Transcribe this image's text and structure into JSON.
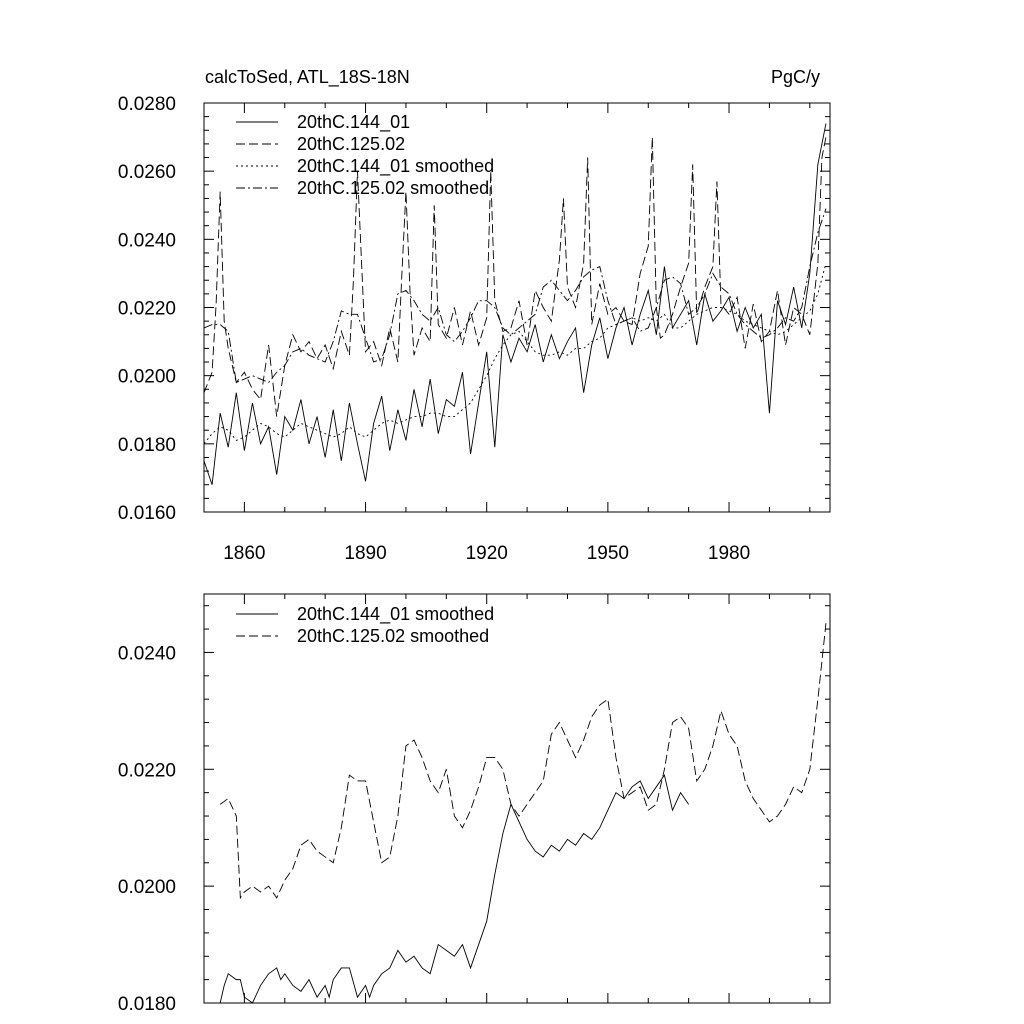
{
  "chart_data": [
    {
      "type": "line",
      "title": "calcToSed, ATL_18S-18N",
      "units_label": "PgC/y",
      "xlabel": "",
      "ylabel": "",
      "xlim": [
        1850,
        2005
      ],
      "ylim": [
        0.016,
        0.028
      ],
      "x_ticks": [
        1860,
        1890,
        1920,
        1950,
        1980
      ],
      "x_tick_labels": [
        "1860",
        "1890",
        "1920",
        "1950",
        "1980"
      ],
      "y_ticks": [
        0.016,
        0.018,
        0.02,
        0.022,
        0.024,
        0.026,
        0.028
      ],
      "y_tick_labels": [
        "0.0160",
        "0.0180",
        "0.0200",
        "0.0220",
        "0.0240",
        "0.0260",
        "0.0280"
      ],
      "legend_position": "top-left",
      "series": [
        {
          "name": "20thC.144_01",
          "style": "solid",
          "x": [
            1850,
            1852,
            1854,
            1856,
            1858,
            1860,
            1862,
            1864,
            1866,
            1868,
            1870,
            1872,
            1874,
            1876,
            1878,
            1880,
            1882,
            1884,
            1886,
            1888,
            1890,
            1892,
            1894,
            1896,
            1898,
            1900,
            1902,
            1904,
            1906,
            1908,
            1910,
            1912,
            1914,
            1916,
            1918,
            1920,
            1922,
            1924,
            1926,
            1928,
            1930,
            1932,
            1934,
            1936,
            1938,
            1940,
            1942,
            1944,
            1946,
            1948,
            1950,
            1952,
            1954,
            1956,
            1958,
            1960,
            1962,
            1964,
            1966,
            1968,
            1970,
            1972,
            1974,
            1976,
            1978,
            1980,
            1982,
            1984,
            1986,
            1988,
            1990,
            1992,
            1994,
            1996,
            1998,
            2000,
            2002,
            2004
          ],
          "y": [
            0.0175,
            0.0168,
            0.0189,
            0.0179,
            0.0195,
            0.0178,
            0.0192,
            0.018,
            0.0185,
            0.0171,
            0.0188,
            0.0184,
            0.0193,
            0.018,
            0.0188,
            0.0176,
            0.019,
            0.0175,
            0.0192,
            0.018,
            0.0169,
            0.0186,
            0.0194,
            0.0178,
            0.019,
            0.0181,
            0.0196,
            0.0185,
            0.0199,
            0.0183,
            0.0193,
            0.0191,
            0.0201,
            0.0177,
            0.0192,
            0.0207,
            0.0179,
            0.0212,
            0.0204,
            0.0211,
            0.0207,
            0.0215,
            0.0204,
            0.0212,
            0.0205,
            0.021,
            0.0214,
            0.0195,
            0.0209,
            0.0217,
            0.0205,
            0.0214,
            0.022,
            0.0209,
            0.0218,
            0.0225,
            0.0212,
            0.0232,
            0.0214,
            0.0218,
            0.0222,
            0.0209,
            0.0224,
            0.0216,
            0.0219,
            0.0223,
            0.0213,
            0.022,
            0.0214,
            0.0218,
            0.0189,
            0.0222,
            0.0215,
            0.0226,
            0.0214,
            0.023,
            0.0262,
            0.0274
          ]
        },
        {
          "name": "20thC.125.02",
          "style": "dash",
          "x": [
            1850,
            1852,
            1853,
            1854,
            1855,
            1856,
            1858,
            1860,
            1862,
            1864,
            1866,
            1868,
            1870,
            1872,
            1874,
            1876,
            1878,
            1880,
            1882,
            1884,
            1886,
            1887,
            1888,
            1890,
            1892,
            1894,
            1896,
            1898,
            1899,
            1900,
            1901,
            1902,
            1904,
            1906,
            1907,
            1908,
            1910,
            1912,
            1914,
            1916,
            1918,
            1920,
            1921,
            1922,
            1924,
            1926,
            1928,
            1930,
            1932,
            1934,
            1936,
            1938,
            1939,
            1940,
            1942,
            1944,
            1945,
            1946,
            1948,
            1950,
            1952,
            1954,
            1956,
            1958,
            1960,
            1961,
            1962,
            1963,
            1964,
            1966,
            1968,
            1970,
            1971,
            1972,
            1974,
            1976,
            1977,
            1978,
            1980,
            1982,
            1984,
            1986,
            1988,
            1990,
            1992,
            1994,
            1996,
            1998,
            2000,
            2002,
            2003,
            2004
          ],
          "y": [
            0.0195,
            0.0201,
            0.0221,
            0.0254,
            0.0216,
            0.0208,
            0.0198,
            0.0201,
            0.0196,
            0.0193,
            0.0209,
            0.0188,
            0.0203,
            0.0212,
            0.0207,
            0.021,
            0.0205,
            0.0209,
            0.0202,
            0.0213,
            0.0206,
            0.0228,
            0.026,
            0.0207,
            0.021,
            0.0203,
            0.0214,
            0.0204,
            0.023,
            0.0254,
            0.0225,
            0.0206,
            0.0214,
            0.021,
            0.025,
            0.0215,
            0.0211,
            0.022,
            0.0209,
            0.0219,
            0.0209,
            0.0217,
            0.026,
            0.0222,
            0.0213,
            0.0214,
            0.0222,
            0.0209,
            0.0225,
            0.022,
            0.0216,
            0.0234,
            0.0252,
            0.0226,
            0.022,
            0.0233,
            0.0264,
            0.0215,
            0.0227,
            0.0218,
            0.022,
            0.0216,
            0.0215,
            0.023,
            0.0238,
            0.027,
            0.022,
            0.0211,
            0.0212,
            0.0218,
            0.0226,
            0.0233,
            0.0262,
            0.0218,
            0.0226,
            0.0232,
            0.0257,
            0.0221,
            0.0218,
            0.0223,
            0.0208,
            0.0221,
            0.021,
            0.0213,
            0.0225,
            0.0209,
            0.022,
            0.0218,
            0.0212,
            0.0233,
            0.0264,
            0.027
          ]
        },
        {
          "name": "20thC.144_01 smoothed",
          "style": "dot",
          "x": [
            1850,
            1852,
            1854,
            1856,
            1858,
            1860,
            1862,
            1864,
            1866,
            1868,
            1870,
            1872,
            1874,
            1876,
            1878,
            1880,
            1882,
            1884,
            1886,
            1888,
            1890,
            1892,
            1894,
            1896,
            1898,
            1900,
            1902,
            1904,
            1906,
            1908,
            1910,
            1912,
            1914,
            1916,
            1918,
            1920,
            1922,
            1924,
            1926,
            1928,
            1930,
            1932,
            1934,
            1936,
            1938,
            1940,
            1942,
            1944,
            1946,
            1948,
            1950,
            1952,
            1954,
            1956,
            1958,
            1960,
            1962,
            1964,
            1966,
            1968,
            1970,
            1972,
            1974,
            1976,
            1978,
            1980,
            1982,
            1984,
            1986,
            1988,
            1990,
            1992,
            1994,
            1996,
            1998,
            2000,
            2002,
            2004
          ],
          "y": [
            0.018,
            0.0183,
            0.0185,
            0.0184,
            0.0181,
            0.0182,
            0.0184,
            0.0186,
            0.0185,
            0.0183,
            0.0182,
            0.0184,
            0.0186,
            0.0185,
            0.0184,
            0.0183,
            0.0182,
            0.0183,
            0.0185,
            0.0183,
            0.0182,
            0.0184,
            0.0186,
            0.0187,
            0.0186,
            0.0187,
            0.0188,
            0.0188,
            0.0189,
            0.0189,
            0.0188,
            0.0188,
            0.019,
            0.0192,
            0.0196,
            0.02,
            0.0205,
            0.0209,
            0.0212,
            0.0213,
            0.021,
            0.0207,
            0.0206,
            0.0206,
            0.0207,
            0.0206,
            0.0208,
            0.0208,
            0.021,
            0.0211,
            0.0214,
            0.0215,
            0.0216,
            0.0217,
            0.0216,
            0.0217,
            0.0216,
            0.0218,
            0.0214,
            0.0214,
            0.0216,
            0.0218,
            0.0219,
            0.022,
            0.022,
            0.0219,
            0.0218,
            0.0216,
            0.0215,
            0.0214,
            0.0213,
            0.0212,
            0.0213,
            0.0215,
            0.0217,
            0.0219,
            0.0224,
            0.0233
          ]
        },
        {
          "name": "20thC.125.02 smoothed",
          "style": "dashdot",
          "x": [
            1850,
            1852,
            1854,
            1856,
            1858,
            1860,
            1862,
            1864,
            1866,
            1868,
            1870,
            1872,
            1874,
            1876,
            1878,
            1880,
            1882,
            1884,
            1886,
            1888,
            1890,
            1892,
            1894,
            1896,
            1898,
            1900,
            1902,
            1904,
            1906,
            1908,
            1910,
            1912,
            1914,
            1916,
            1918,
            1920,
            1922,
            1924,
            1926,
            1928,
            1930,
            1932,
            1934,
            1936,
            1938,
            1940,
            1942,
            1944,
            1946,
            1948,
            1950,
            1952,
            1954,
            1956,
            1958,
            1960,
            1962,
            1964,
            1966,
            1968,
            1970,
            1972,
            1974,
            1976,
            1978,
            1980,
            1982,
            1984,
            1986,
            1988,
            1990,
            1992,
            1994,
            1996,
            1998,
            2000,
            2002,
            2004
          ],
          "y": [
            0.0214,
            0.0215,
            0.0215,
            0.0213,
            0.0198,
            0.0199,
            0.02,
            0.0199,
            0.0198,
            0.0201,
            0.0203,
            0.0207,
            0.0208,
            0.0206,
            0.0205,
            0.0204,
            0.021,
            0.0219,
            0.0218,
            0.0218,
            0.0211,
            0.0204,
            0.0205,
            0.0212,
            0.0224,
            0.0225,
            0.0222,
            0.0218,
            0.0216,
            0.022,
            0.0212,
            0.021,
            0.0213,
            0.0217,
            0.0222,
            0.0222,
            0.022,
            0.0214,
            0.0212,
            0.0214,
            0.0216,
            0.0218,
            0.0226,
            0.0228,
            0.0225,
            0.0222,
            0.0225,
            0.0229,
            0.0231,
            0.0232,
            0.0222,
            0.0215,
            0.0216,
            0.0217,
            0.0213,
            0.0214,
            0.022,
            0.0228,
            0.0229,
            0.0227,
            0.0218,
            0.022,
            0.0224,
            0.023,
            0.0226,
            0.0224,
            0.0218,
            0.0215,
            0.0213,
            0.0211,
            0.0212,
            0.0214,
            0.0217,
            0.0216,
            0.022,
            0.0232,
            0.0242,
            0.0249
          ]
        }
      ]
    },
    {
      "type": "line",
      "title": "",
      "xlabel": "",
      "ylabel": "",
      "xlim": [
        1850,
        2005
      ],
      "ylim": [
        0.018,
        0.025
      ],
      "x_ticks": [
        1860,
        1890,
        1920,
        1950,
        1980
      ],
      "x_tick_labels": [],
      "y_ticks": [
        0.018,
        0.02,
        0.022,
        0.024
      ],
      "y_tick_labels": [
        "0.0180",
        "0.0200",
        "0.0220",
        "0.0240"
      ],
      "legend_position": "top-left",
      "series": [
        {
          "name": "20thC.144_01 smoothed",
          "style": "solid",
          "x": [
            1854,
            1855,
            1856,
            1858,
            1859,
            1860,
            1862,
            1864,
            1866,
            1868,
            1869,
            1870,
            1872,
            1874,
            1876,
            1878,
            1880,
            1881,
            1882,
            1884,
            1886,
            1888,
            1890,
            1891,
            1892,
            1894,
            1896,
            1898,
            1900,
            1902,
            1904,
            1906,
            1908,
            1910,
            1912,
            1914,
            1916,
            1918,
            1920,
            1922,
            1924,
            1926,
            1928,
            1930,
            1932,
            1934,
            1936,
            1938,
            1940,
            1942,
            1944,
            1946,
            1948,
            1950,
            1952,
            1954,
            1956,
            1958,
            1960,
            1962,
            1964,
            1966,
            1968,
            1970
          ],
          "y": [
            0.018,
            0.0183,
            0.0185,
            0.0184,
            0.0184,
            0.0181,
            0.018,
            0.0183,
            0.0185,
            0.0186,
            0.0184,
            0.0185,
            0.0183,
            0.0182,
            0.0184,
            0.0181,
            0.0183,
            0.0181,
            0.0184,
            0.0186,
            0.0186,
            0.0181,
            0.0183,
            0.0181,
            0.0183,
            0.0185,
            0.0186,
            0.0189,
            0.0187,
            0.0188,
            0.0186,
            0.0185,
            0.019,
            0.0189,
            0.0188,
            0.019,
            0.0186,
            0.019,
            0.0194,
            0.0202,
            0.0209,
            0.0214,
            0.0211,
            0.0208,
            0.0206,
            0.0205,
            0.0207,
            0.0206,
            0.0208,
            0.0207,
            0.0209,
            0.0208,
            0.021,
            0.0213,
            0.0216,
            0.0215,
            0.0217,
            0.0218,
            0.0215,
            0.0217,
            0.0219,
            0.0213,
            0.0216,
            0.0214
          ]
        },
        {
          "name": "20thC.125.02 smoothed",
          "style": "dash",
          "x": [
            1854,
            1856,
            1858,
            1859,
            1860,
            1862,
            1864,
            1866,
            1868,
            1870,
            1872,
            1874,
            1876,
            1878,
            1880,
            1882,
            1884,
            1886,
            1888,
            1890,
            1892,
            1894,
            1896,
            1898,
            1900,
            1902,
            1904,
            1906,
            1908,
            1910,
            1912,
            1914,
            1916,
            1918,
            1920,
            1922,
            1924,
            1926,
            1928,
            1930,
            1932,
            1934,
            1936,
            1938,
            1940,
            1942,
            1944,
            1946,
            1948,
            1950,
            1952,
            1954,
            1956,
            1958,
            1960,
            1962,
            1964,
            1966,
            1968,
            1970,
            1972,
            1974,
            1976,
            1978,
            1980,
            1982,
            1984,
            1986,
            1988,
            1990,
            1992,
            1994,
            1996,
            1998,
            2000,
            2002,
            2004
          ],
          "y": [
            0.0214,
            0.0215,
            0.0212,
            0.0198,
            0.0199,
            0.02,
            0.0199,
            0.02,
            0.0198,
            0.0201,
            0.0203,
            0.0207,
            0.0208,
            0.0206,
            0.0205,
            0.0204,
            0.021,
            0.0219,
            0.0218,
            0.0218,
            0.0211,
            0.0204,
            0.0205,
            0.0212,
            0.0224,
            0.0225,
            0.0222,
            0.0218,
            0.0216,
            0.022,
            0.0212,
            0.021,
            0.0213,
            0.0217,
            0.0222,
            0.0222,
            0.022,
            0.0214,
            0.0212,
            0.0214,
            0.0216,
            0.0218,
            0.0226,
            0.0228,
            0.0225,
            0.0222,
            0.0225,
            0.0229,
            0.0231,
            0.0232,
            0.0222,
            0.0215,
            0.0216,
            0.0217,
            0.0213,
            0.0214,
            0.022,
            0.0228,
            0.0229,
            0.0227,
            0.0218,
            0.022,
            0.0224,
            0.023,
            0.0226,
            0.0224,
            0.0218,
            0.0215,
            0.0213,
            0.0211,
            0.0212,
            0.0214,
            0.0217,
            0.0216,
            0.022,
            0.0232,
            0.0245
          ]
        }
      ]
    }
  ]
}
